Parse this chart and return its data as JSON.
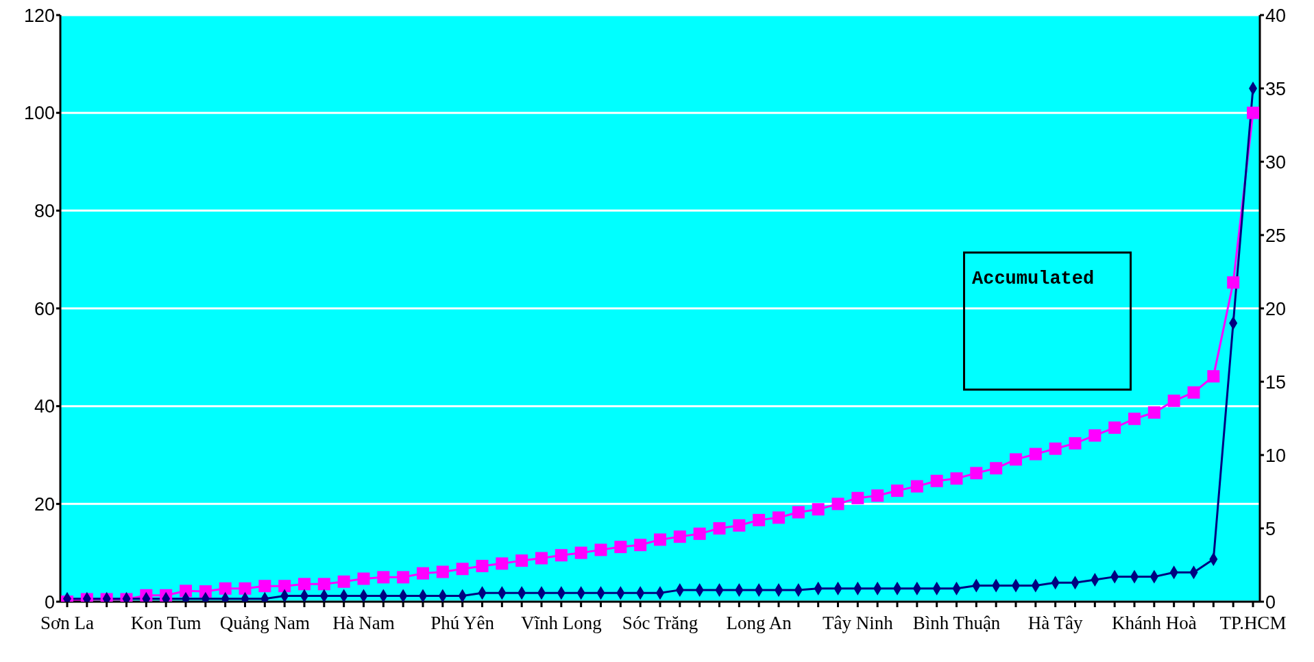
{
  "chart_data": {
    "type": "line",
    "categories": [
      "Sơn La",
      null,
      null,
      null,
      null,
      "Kon Tum",
      null,
      null,
      null,
      null,
      "Quảng Nam",
      null,
      null,
      null,
      null,
      "Hà Nam",
      null,
      null,
      null,
      null,
      "Phú Yên",
      null,
      null,
      null,
      null,
      "Vĩnh Long",
      null,
      null,
      null,
      null,
      "Sóc Trăng",
      null,
      null,
      null,
      null,
      "Long An",
      null,
      null,
      null,
      null,
      "Tây Ninh",
      null,
      null,
      null,
      null,
      "Bình Thuận",
      null,
      null,
      null,
      null,
      "Hà Tây",
      null,
      null,
      null,
      null,
      "Khánh Hoà",
      null,
      null,
      null,
      null,
      "TP.HCM"
    ],
    "series": [
      {
        "color": "#ff00ff",
        "marker": "square",
        "values": [
          0,
          0.5,
          0.5,
          0.5,
          1.3,
          1.3,
          2.2,
          2.1,
          2.7,
          2.7,
          3.2,
          3.2,
          3.6,
          3.6,
          4.1,
          4.7,
          5.0,
          5.0,
          5.8,
          6.1,
          6.7,
          7.3,
          7.8,
          8.4,
          8.9,
          9.5,
          10.0,
          10.6,
          11.2,
          11.6,
          12.7,
          13.3,
          13.9,
          15.0,
          15.6,
          16.7,
          17.2,
          18.3,
          18.9,
          20.0,
          21.2,
          21.7,
          22.7,
          23.6,
          24.7,
          25.2,
          26.3,
          27.3,
          29.1,
          30.2,
          31.3,
          32.4,
          34.0,
          35.6,
          37.4,
          38.7,
          41.1,
          42.8,
          46.1,
          65.3,
          100
        ]
      },
      {
        "color": "#000080",
        "marker": "diamond",
        "axis": "y2",
        "values": [
          0.2,
          0.2,
          0.2,
          0.2,
          0.2,
          0.2,
          0.2,
          0.2,
          0.2,
          0.2,
          0.2,
          0.4,
          0.4,
          0.4,
          0.4,
          0.4,
          0.4,
          0.4,
          0.4,
          0.4,
          0.4,
          0.6,
          0.6,
          0.6,
          0.6,
          0.6,
          0.6,
          0.6,
          0.6,
          0.6,
          0.6,
          0.8,
          0.8,
          0.8,
          0.8,
          0.8,
          0.8,
          0.8,
          0.9,
          0.9,
          0.9,
          0.9,
          0.9,
          0.9,
          0.9,
          0.9,
          1.1,
          1.1,
          1.1,
          1.1,
          1.3,
          1.3,
          1.5,
          1.7,
          1.7,
          1.7,
          2.0,
          2.0,
          2.9,
          19.0,
          35
        ]
      }
    ],
    "ylim": [
      0,
      120
    ],
    "yticks": [
      0,
      20,
      40,
      60,
      80,
      100,
      120
    ],
    "y2lim": [
      0,
      40
    ],
    "y2ticks": [
      0,
      5,
      10,
      15,
      20,
      25,
      30,
      35,
      40
    ],
    "grid": "y",
    "annotations": [
      "Accumulated"
    ]
  }
}
